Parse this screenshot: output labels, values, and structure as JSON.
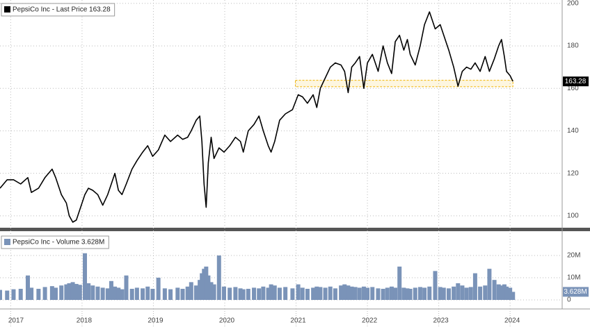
{
  "chart_data": [
    {
      "type": "line",
      "x": [
        2016.85,
        2016.95,
        2017.04,
        2017.14,
        2017.24,
        2017.29,
        2017.39,
        2017.48,
        2017.58,
        2017.63,
        2017.71,
        2017.78,
        2017.82,
        2017.87,
        2017.92,
        2017.97,
        2018.04,
        2018.09,
        2018.15,
        2018.22,
        2018.29,
        2018.36,
        2018.41,
        2018.46,
        2018.51,
        2018.56,
        2018.62,
        2018.7,
        2018.77,
        2018.85,
        2018.92,
        2018.99,
        2019.07,
        2019.16,
        2019.24,
        2019.34,
        2019.41,
        2019.48,
        2019.53,
        2019.6,
        2019.65,
        2019.68,
        2019.71,
        2019.74,
        2019.77,
        2019.81,
        2019.85,
        2019.92,
        2019.99,
        2020.07,
        2020.15,
        2020.22,
        2020.26,
        2020.33,
        2020.41,
        2020.48,
        2020.54,
        2020.61,
        2020.65,
        2020.7,
        2020.77,
        2020.85,
        2020.95,
        2021.03,
        2021.09,
        2021.16,
        2021.24,
        2021.29,
        2021.34,
        2021.41,
        2021.48,
        2021.55,
        2021.63,
        2021.68,
        2021.73,
        2021.78,
        2021.83,
        2021.89,
        2021.95,
        2022.0,
        2022.07,
        2022.15,
        2022.22,
        2022.28,
        2022.34,
        2022.39,
        2022.45,
        2022.51,
        2022.56,
        2022.6,
        2022.67,
        2022.74,
        2022.8,
        2022.87,
        2022.95,
        2023.02,
        2023.07,
        2023.14,
        2023.21,
        2023.27,
        2023.33,
        2023.39,
        2023.45,
        2023.51,
        2023.58,
        2023.65,
        2023.71,
        2023.78,
        2023.84,
        2023.88,
        2023.92,
        2023.95,
        2024.0,
        2024.04
      ],
      "series": [
        {
          "name": "PepsiCo Inc - Last Price 163.28",
          "color": "#000000",
          "values": [
            113,
            117,
            117,
            115,
            118,
            111,
            113,
            118,
            122,
            118,
            110,
            106,
            100,
            97,
            98,
            103,
            110,
            113,
            112,
            110,
            105,
            110,
            115,
            120,
            112,
            110,
            115,
            122,
            126,
            130,
            133,
            128,
            131,
            138,
            135,
            138,
            136,
            137,
            140,
            145,
            147,
            135,
            115,
            104,
            125,
            137,
            127,
            132,
            130,
            133,
            137,
            135,
            130,
            140,
            143,
            147,
            140,
            133,
            130,
            135,
            145,
            148,
            150,
            157,
            156,
            153,
            157,
            151,
            160,
            165,
            170,
            172,
            171,
            168,
            158,
            170,
            172,
            175,
            160,
            172,
            176,
            168,
            180,
            172,
            167,
            182,
            185,
            178,
            183,
            176,
            171,
            180,
            190,
            196,
            188,
            190,
            185,
            178,
            170,
            161,
            168,
            170,
            169,
            172,
            168,
            175,
            168,
            174,
            180,
            183,
            175,
            168,
            166,
            163.28
          ]
        }
      ],
      "xlim": [
        2016.85,
        2024.73
      ],
      "ylim": [
        94.4,
        201.6
      ],
      "yticks": [
        100,
        120,
        140,
        160,
        180,
        200
      ],
      "grid": true,
      "band": {
        "xlim": [
          2020.99,
          2024.04
        ],
        "ylim": [
          160.8,
          163.8
        ],
        "color": "#f2b400"
      }
    },
    {
      "type": "bar",
      "x": [
        2016.85,
        2016.95,
        2017.04,
        2017.14,
        2017.24,
        2017.29,
        2017.39,
        2017.48,
        2017.58,
        2017.63,
        2017.71,
        2017.78,
        2017.82,
        2017.87,
        2017.92,
        2017.97,
        2018.04,
        2018.09,
        2018.15,
        2018.22,
        2018.29,
        2018.36,
        2018.41,
        2018.46,
        2018.51,
        2018.56,
        2018.62,
        2018.7,
        2018.77,
        2018.85,
        2018.92,
        2018.99,
        2019.07,
        2019.16,
        2019.24,
        2019.34,
        2019.41,
        2019.48,
        2019.53,
        2019.6,
        2019.65,
        2019.68,
        2019.71,
        2019.74,
        2019.77,
        2019.81,
        2019.85,
        2019.92,
        2019.99,
        2020.07,
        2020.15,
        2020.22,
        2020.26,
        2020.33,
        2020.41,
        2020.48,
        2020.54,
        2020.61,
        2020.65,
        2020.7,
        2020.77,
        2020.85,
        2020.95,
        2021.03,
        2021.09,
        2021.16,
        2021.24,
        2021.29,
        2021.34,
        2021.41,
        2021.48,
        2021.55,
        2021.63,
        2021.68,
        2021.73,
        2021.78,
        2021.83,
        2021.89,
        2021.95,
        2022.0,
        2022.07,
        2022.15,
        2022.22,
        2022.28,
        2022.34,
        2022.39,
        2022.45,
        2022.51,
        2022.56,
        2022.6,
        2022.67,
        2022.74,
        2022.8,
        2022.87,
        2022.95,
        2023.02,
        2023.07,
        2023.14,
        2023.21,
        2023.27,
        2023.33,
        2023.39,
        2023.45,
        2023.51,
        2023.58,
        2023.65,
        2023.71,
        2023.78,
        2023.84,
        2023.88,
        2023.92,
        2023.95,
        2024.0,
        2024.04
      ],
      "series": [
        {
          "name": "PepsiCo Inc - Volume 3.628M",
          "color": "#7a93b8",
          "values": [
            4.5,
            4.2,
            4.8,
            5.0,
            11,
            5.5,
            5.0,
            5.8,
            6.2,
            5.5,
            6.5,
            7.0,
            7.5,
            8.0,
            7.2,
            6.8,
            21,
            7.5,
            6.5,
            6.0,
            5.5,
            5.2,
            8.5,
            6.0,
            5.5,
            4.8,
            11,
            5.0,
            5.5,
            5.2,
            6.0,
            5.0,
            10,
            5.2,
            4.8,
            5.5,
            5.0,
            6.0,
            8,
            6.5,
            9,
            12,
            14,
            15,
            11,
            8,
            7,
            20,
            6,
            5.5,
            5.8,
            5.2,
            4.8,
            5.0,
            5.5,
            5.2,
            6.0,
            5.5,
            7.0,
            6.5,
            5.5,
            5.8,
            5.2,
            7,
            5.5,
            5.0,
            5.5,
            6.0,
            5.8,
            5.5,
            6.0,
            5.2,
            6.5,
            7.0,
            6.5,
            6.0,
            5.8,
            5.5,
            6.0,
            5.5,
            5.8,
            5.2,
            5.0,
            5.5,
            6.0,
            5.5,
            15,
            5.5,
            5.2,
            5.0,
            5.5,
            5.8,
            5.5,
            6.0,
            13,
            5.8,
            5.5,
            5.2,
            6.0,
            7.5,
            6.5,
            5.5,
            5.8,
            12,
            6.0,
            6.5,
            14,
            9,
            7.0,
            6.5,
            7.0,
            6.0,
            5.5,
            3.628
          ],
          "value_labels": [
            null,
            null,
            null,
            null,
            null,
            null,
            null,
            null,
            null,
            null,
            null,
            null,
            null,
            null,
            null,
            null,
            null,
            null,
            null,
            null,
            null,
            null,
            null,
            null,
            null,
            null,
            null,
            null,
            null,
            null,
            null,
            null,
            null,
            null,
            null,
            null,
            null,
            null,
            null,
            null,
            null,
            null,
            null,
            null,
            null,
            null,
            null,
            null,
            null,
            null,
            null,
            null,
            null,
            null,
            null,
            null,
            null,
            null,
            null,
            null,
            null,
            null,
            null,
            null,
            null,
            null,
            null,
            null,
            null,
            null,
            null,
            null,
            null,
            null,
            null,
            null,
            null,
            null,
            null,
            null,
            null,
            null,
            null,
            null,
            null,
            null,
            null,
            null,
            null,
            null,
            null,
            null,
            null,
            null,
            null,
            null,
            null,
            null,
            null,
            null,
            null,
            null,
            null,
            null,
            null,
            null,
            null,
            null,
            null,
            null,
            null,
            null,
            null,
            "3.628M"
          ]
        }
      ],
      "xlim": [
        2016.85,
        2024.73
      ],
      "xticks": [
        2017,
        2018,
        2019,
        2020,
        2021,
        2022,
        2023,
        2024
      ],
      "ylim": [
        -2.5,
        30.3
      ],
      "yticks": [
        0,
        {
          "value": 10,
          "label": "10M"
        },
        {
          "value": 20,
          "label": "20M"
        }
      ],
      "grid": true
    }
  ]
}
